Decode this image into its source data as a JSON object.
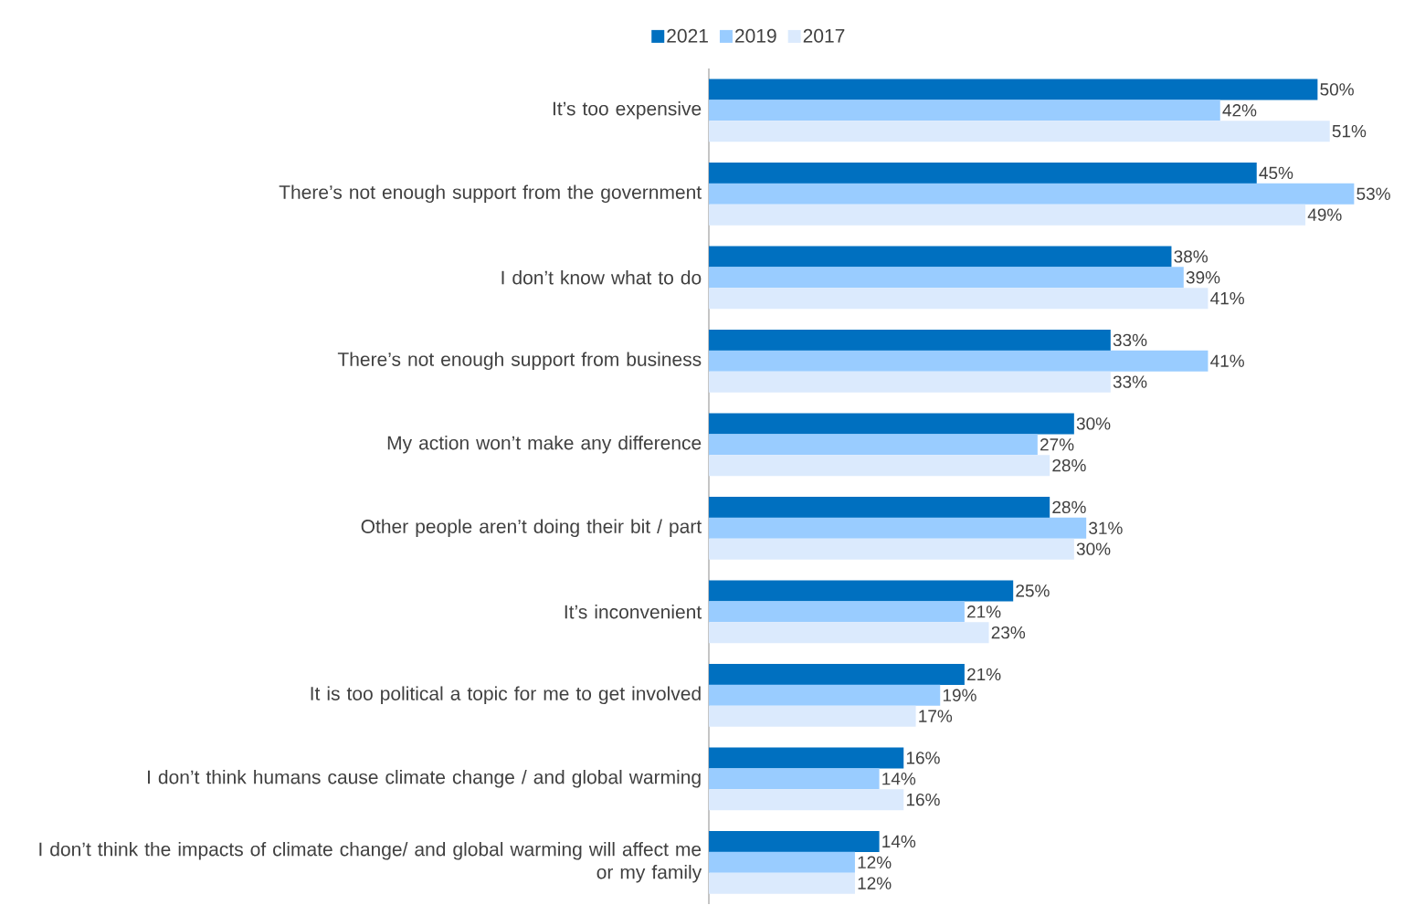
{
  "chart_data": {
    "type": "bar",
    "orientation": "horizontal",
    "legend": "top",
    "categories": [
      "It’s too expensive",
      "There’s not enough support from the government",
      "I don’t know what to do",
      "There’s not enough support from business",
      "My action won’t make any difference",
      "Other people aren’t doing their bit / part",
      "It’s inconvenient",
      "It is too political a topic for me to get involved",
      "I don’t think humans cause climate change / and global warming",
      "I don’t think the impacts of climate change/ and global warming will affect me or my family"
    ],
    "series": [
      {
        "name": "2021",
        "color": "#0070c0",
        "values": [
          50,
          45,
          38,
          33,
          30,
          28,
          25,
          21,
          16,
          14
        ],
        "value_labels": [
          "50%",
          "45%",
          "38%",
          "33%",
          "30%",
          "28%",
          "25%",
          "21%",
          "16%",
          "14%"
        ]
      },
      {
        "name": "2019",
        "color": "#99ccff",
        "values": [
          42,
          53,
          39,
          41,
          27,
          31,
          21,
          19,
          14,
          12
        ],
        "value_labels": [
          "42%",
          "53%",
          "39%",
          "41%",
          "27%",
          "31%",
          "21%",
          "19%",
          "14%",
          "12%"
        ]
      },
      {
        "name": "2017",
        "color": "#dbeafd",
        "values": [
          51,
          49,
          41,
          33,
          28,
          30,
          23,
          17,
          16,
          12
        ],
        "value_labels": [
          "51%",
          "49%",
          "41%",
          "33%",
          "28%",
          "30%",
          "23%",
          "17%",
          "16%",
          "12%"
        ]
      }
    ]
  }
}
